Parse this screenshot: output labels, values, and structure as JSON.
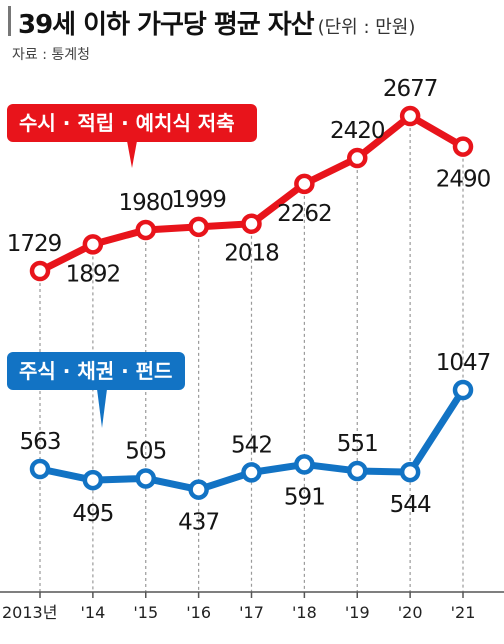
{
  "header": {
    "title": "39세 이하 가구당 평균 자산",
    "unit": "(단위 : 만원)",
    "source": "자료 : 통계청"
  },
  "chart_data": {
    "type": "line",
    "title": "39세 이하 가구당 평균 자산",
    "unit": "(단위 : 만원)",
    "categories": [
      "2013년",
      "'14",
      "'15",
      "'16",
      "'17",
      "'18",
      "'19",
      "'20",
      "'21"
    ],
    "series": [
      {
        "name": "수시 · 적립 · 예치식 저축",
        "color": "#e8141b",
        "values": [
          1729,
          1892,
          1980,
          1999,
          2018,
          2262,
          2420,
          2677,
          2490
        ]
      },
      {
        "name": "주식 · 채권 · 펀드",
        "color": "#1273c4",
        "values": [
          563,
          495,
          505,
          437,
          542,
          591,
          551,
          544,
          1047
        ]
      }
    ],
    "grid": false,
    "legend": "inline-labels"
  }
}
